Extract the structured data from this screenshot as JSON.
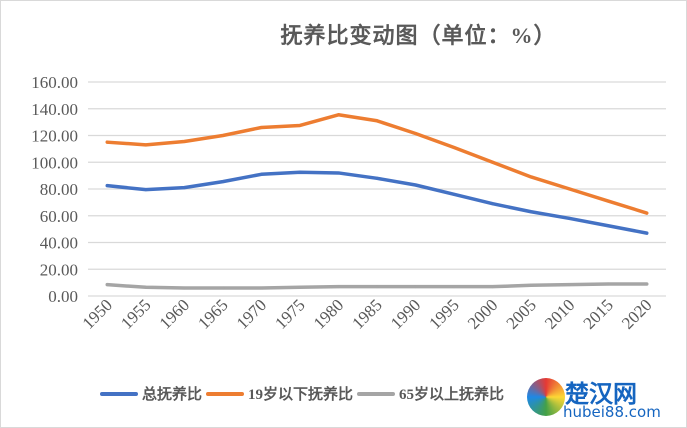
{
  "chart_data": {
    "type": "line",
    "title": "抚养比变动图（单位：%）",
    "xlabel": "",
    "ylabel": "",
    "x": [
      "1950",
      "1955",
      "1960",
      "1965",
      "1970",
      "1975",
      "1980",
      "1985",
      "1990",
      "1995",
      "2000",
      "2005",
      "2010",
      "2015",
      "2020"
    ],
    "yticks": [
      "0.00",
      "20.00",
      "40.00",
      "60.00",
      "80.00",
      "100.00",
      "120.00",
      "140.00",
      "160.00"
    ],
    "ylim": [
      0,
      160
    ],
    "grid": true,
    "legend_position": "bottom",
    "series": [
      {
        "name": "总抚养比",
        "color": "#4472c4",
        "values": [
          82.5,
          79.5,
          81,
          85.5,
          91,
          92.5,
          92,
          88,
          83,
          76,
          69,
          63,
          58,
          52.5,
          47
        ]
      },
      {
        "name": "19岁以下抚养比",
        "color": "#ed7d31",
        "values": [
          115,
          113,
          115.5,
          120,
          126,
          127.5,
          135.5,
          131,
          121.5,
          111,
          100,
          89,
          80,
          71,
          62
        ]
      },
      {
        "name": "65岁以上抚养比",
        "color": "#a5a5a5",
        "values": [
          8.5,
          6.5,
          6,
          6,
          6,
          6.5,
          7,
          7,
          7,
          7,
          7,
          8,
          8.5,
          9,
          9
        ]
      }
    ]
  },
  "watermark": {
    "text": "楚汉网",
    "sub": "hubei88.com"
  }
}
